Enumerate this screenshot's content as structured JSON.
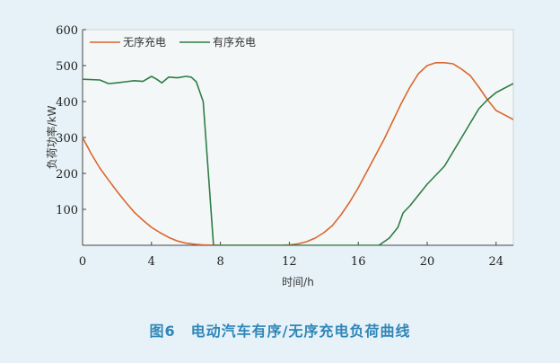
{
  "caption": "图6　电动汽车有序/无序充电负荷曲线",
  "chart_data": {
    "type": "line",
    "title": "",
    "xlabel": "时间/h",
    "ylabel": "负荷功率/kW",
    "xlim": [
      0,
      25
    ],
    "ylim": [
      0,
      600
    ],
    "xticks": [
      0,
      4,
      8,
      12,
      16,
      20,
      24
    ],
    "yticks": [
      100,
      200,
      300,
      400,
      500,
      600
    ],
    "grid": false,
    "legend_position": "top-left",
    "series": [
      {
        "name": "无序充电",
        "color": "#d9672e",
        "points": [
          [
            0,
            300
          ],
          [
            0.5,
            255
          ],
          [
            1,
            215
          ],
          [
            1.5,
            182
          ],
          [
            2,
            150
          ],
          [
            2.5,
            120
          ],
          [
            3,
            92
          ],
          [
            3.5,
            70
          ],
          [
            4,
            50
          ],
          [
            4.5,
            35
          ],
          [
            5,
            22
          ],
          [
            5.5,
            12
          ],
          [
            6,
            6
          ],
          [
            6.5,
            3
          ],
          [
            7,
            1
          ],
          [
            7.5,
            0.5
          ],
          [
            8,
            0
          ],
          [
            11.5,
            0
          ],
          [
            12,
            1
          ],
          [
            12.5,
            4
          ],
          [
            13,
            10
          ],
          [
            13.5,
            20
          ],
          [
            14,
            35
          ],
          [
            14.5,
            55
          ],
          [
            15,
            85
          ],
          [
            15.5,
            120
          ],
          [
            16,
            160
          ],
          [
            16.5,
            205
          ],
          [
            17,
            250
          ],
          [
            17.5,
            295
          ],
          [
            18,
            345
          ],
          [
            18.5,
            395
          ],
          [
            19,
            440
          ],
          [
            19.5,
            478
          ],
          [
            20,
            500
          ],
          [
            20.5,
            508
          ],
          [
            21,
            508
          ],
          [
            21.5,
            505
          ],
          [
            22,
            490
          ],
          [
            22.5,
            472
          ],
          [
            23,
            440
          ],
          [
            23.5,
            405
          ],
          [
            24,
            375
          ],
          [
            25,
            350
          ]
        ]
      },
      {
        "name": "有序充电",
        "color": "#2e7d46",
        "points": [
          [
            0,
            462
          ],
          [
            1,
            460
          ],
          [
            1.5,
            450
          ],
          [
            2,
            452
          ],
          [
            2.5,
            455
          ],
          [
            3,
            458
          ],
          [
            3.5,
            456
          ],
          [
            4,
            470
          ],
          [
            4.3,
            462
          ],
          [
            4.6,
            452
          ],
          [
            5,
            468
          ],
          [
            5.5,
            466
          ],
          [
            6,
            470
          ],
          [
            6.3,
            468
          ],
          [
            6.6,
            455
          ],
          [
            7,
            400
          ],
          [
            7.3,
            200
          ],
          [
            7.6,
            0
          ],
          [
            17.2,
            0
          ],
          [
            17.8,
            20
          ],
          [
            18.3,
            50
          ],
          [
            18.6,
            90
          ],
          [
            19,
            110
          ],
          [
            19.5,
            140
          ],
          [
            20,
            170
          ],
          [
            20.5,
            195
          ],
          [
            21,
            220
          ],
          [
            21.5,
            260
          ],
          [
            22,
            300
          ],
          [
            22.5,
            340
          ],
          [
            23,
            380
          ],
          [
            23.5,
            405
          ],
          [
            24,
            425
          ],
          [
            25,
            450
          ]
        ]
      }
    ]
  }
}
